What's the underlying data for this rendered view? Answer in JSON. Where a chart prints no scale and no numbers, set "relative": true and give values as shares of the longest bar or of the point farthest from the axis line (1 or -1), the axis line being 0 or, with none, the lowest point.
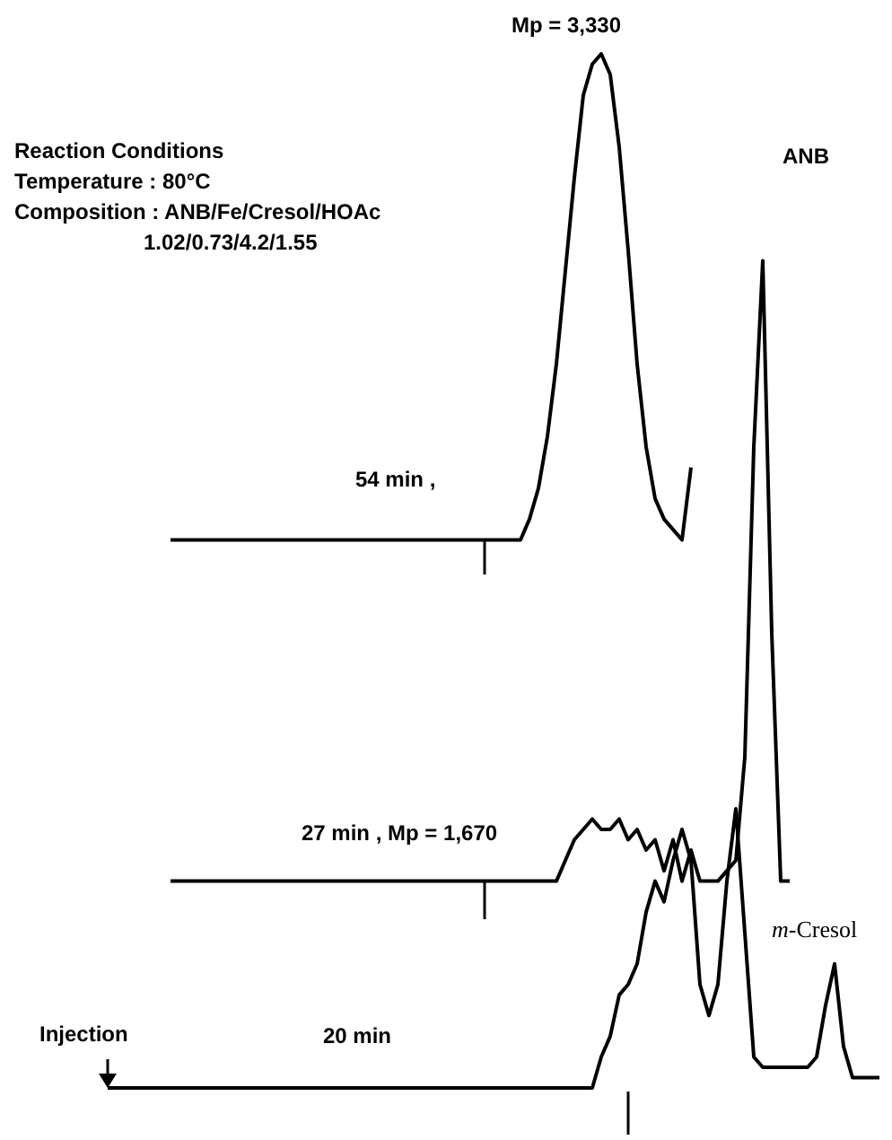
{
  "chart_data": {
    "type": "line",
    "relative": true,
    "grid": false,
    "categories": [
      null,
      null,
      null,
      null,
      null,
      null,
      null,
      null,
      null,
      null,
      null,
      null,
      null,
      null,
      null,
      null,
      null,
      null,
      null,
      null,
      null,
      null,
      null,
      null,
      null,
      null,
      null,
      null,
      null,
      null,
      null,
      null,
      null,
      null,
      null,
      null,
      null,
      null,
      null,
      null,
      null,
      null,
      null,
      null,
      null,
      null,
      null,
      null,
      null,
      null,
      null,
      null,
      null,
      null,
      null,
      null,
      null,
      null,
      null,
      null,
      null,
      null,
      null,
      null,
      null,
      null,
      null,
      null,
      null,
      null,
      null,
      null,
      null,
      null,
      null,
      null,
      null,
      null,
      null,
      null,
      null,
      null,
      null,
      null,
      null,
      null,
      null
    ],
    "series": [
      {
        "color": "#000000",
        "values": [
          null,
          null,
          null,
          null,
          null,
          null,
          null,
          0.53,
          0.53,
          0.53,
          0.53,
          0.53,
          0.53,
          0.53,
          0.53,
          0.53,
          0.53,
          0.53,
          0.53,
          0.53,
          0.53,
          0.53,
          0.53,
          0.53,
          0.53,
          0.53,
          0.53,
          0.53,
          0.53,
          0.53,
          0.53,
          0.53,
          0.53,
          0.53,
          0.53,
          0.53,
          0.53,
          0.53,
          0.53,
          0.53,
          0.53,
          0.53,
          0.53,
          0.53,
          0.53,
          0.53,
          0.53,
          0.55,
          0.58,
          0.63,
          0.7,
          0.79,
          0.88,
          0.96,
          0.99,
          1.0,
          0.98,
          0.91,
          0.81,
          0.7,
          0.62,
          0.57,
          0.55,
          0.54,
          0.53,
          0.6,
          null,
          null,
          null,
          null,
          null,
          null,
          null,
          null,
          null,
          null,
          null,
          null,
          null,
          null,
          null,
          null,
          null,
          null,
          null,
          null,
          null
        ]
      },
      {
        "color": "#000000",
        "values": [
          null,
          null,
          null,
          null,
          null,
          null,
          null,
          0.2,
          0.2,
          0.2,
          0.2,
          0.2,
          0.2,
          0.2,
          0.2,
          0.2,
          0.2,
          0.2,
          0.2,
          0.2,
          0.2,
          0.2,
          0.2,
          0.2,
          0.2,
          0.2,
          0.2,
          0.2,
          0.2,
          0.2,
          0.2,
          0.2,
          0.2,
          0.2,
          0.2,
          0.2,
          0.2,
          0.2,
          0.2,
          0.2,
          0.2,
          0.2,
          0.2,
          0.2,
          0.2,
          0.2,
          0.2,
          0.2,
          0.2,
          0.2,
          0.2,
          0.22,
          0.24,
          0.25,
          0.26,
          0.25,
          0.25,
          0.26,
          0.24,
          0.25,
          0.23,
          0.24,
          0.21,
          0.24,
          0.2,
          0.23,
          0.2,
          0.2,
          0.2,
          0.21,
          0.22,
          0.32,
          0.62,
          0.8,
          0.44,
          0.2,
          0.2,
          null,
          null,
          null,
          null,
          null,
          null,
          null,
          null,
          null,
          null
        ]
      },
      {
        "color": "#000000",
        "values": [
          0,
          0,
          0,
          0,
          0,
          0,
          0,
          0,
          0,
          0,
          0,
          0,
          0,
          0,
          0,
          0,
          0,
          0,
          0,
          0,
          0,
          0,
          0,
          0,
          0,
          0,
          0,
          0,
          0,
          0,
          0,
          0,
          0,
          0,
          0,
          0,
          0,
          0,
          0,
          0,
          0,
          0,
          0,
          0,
          0,
          0,
          0,
          0,
          0,
          0,
          0,
          0,
          0,
          0,
          0,
          0.03,
          0.05,
          0.09,
          0.1,
          0.12,
          0.17,
          0.2,
          0.18,
          0.22,
          0.25,
          0.22,
          0.1,
          0.07,
          0.1,
          0.2,
          0.27,
          0.15,
          0.03,
          0.02,
          0.02,
          0.02,
          0.02,
          0.02,
          0.02,
          0.03,
          0.08,
          0.12,
          0.04,
          0.01,
          0.01,
          0.01,
          0.01
        ]
      }
    ],
    "annotations": [
      "Mp = 3,330",
      "Reaction Conditions",
      "Temperature : 80°C",
      "Composition : ANB/Fe/Cresol/HOAc",
      "1.02/0.73/4.2/1.55",
      "ANB",
      "54 min ,",
      "27 min , Mp = 1,670",
      "Injection",
      "20 min",
      "m-Cresol"
    ]
  }
}
